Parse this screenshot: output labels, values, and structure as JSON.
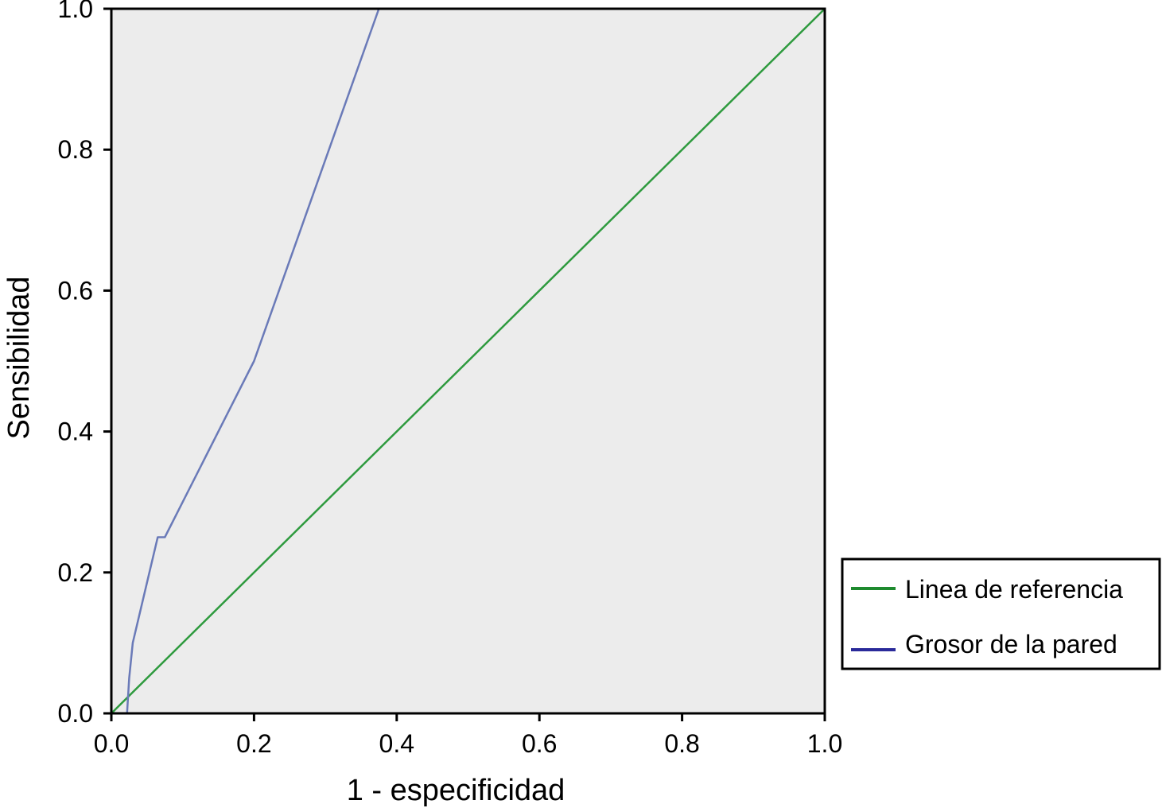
{
  "chart_data": {
    "type": "line",
    "title": "",
    "xlabel": "1 - especificidad",
    "ylabel": "Sensibilidad",
    "xlim": [
      0.0,
      1.0
    ],
    "ylim": [
      0.0,
      1.0
    ],
    "xticks": [
      "0.0",
      "0.2",
      "0.4",
      "0.6",
      "0.8",
      "1.0"
    ],
    "yticks": [
      "0.0",
      "0.2",
      "0.4",
      "0.6",
      "0.8",
      "1.0"
    ],
    "grid": false,
    "legend_position": "right",
    "background_color": "#ececec",
    "series": [
      {
        "name": "Linea de referencia",
        "color": "#2e9a3e",
        "legend_color": "#1e8a2e",
        "x": [
          0.0,
          1.0
        ],
        "y": [
          0.0,
          1.0
        ]
      },
      {
        "name": "Grosor de la pared",
        "color": "#6a7ab8",
        "legend_color": "#2a2a9a",
        "x": [
          0.0,
          0.022,
          0.025,
          0.03,
          0.065,
          0.07,
          0.075,
          0.2,
          0.375,
          0.4,
          1.0
        ],
        "y": [
          0.0,
          0.0,
          0.05,
          0.1,
          0.25,
          0.25,
          0.25,
          0.5,
          1.0,
          1.0,
          1.0
        ]
      }
    ]
  }
}
